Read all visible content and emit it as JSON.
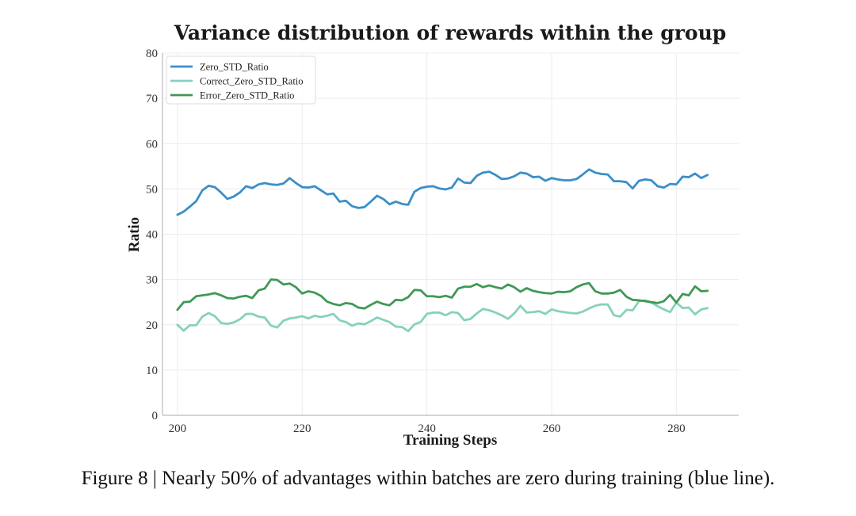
{
  "caption": "Figure 8 | Nearly 50% of advantages within batches are zero during training (blue line).",
  "chart_data": {
    "type": "line",
    "title": "Variance distribution of rewards within the group",
    "xlabel": "Training Steps",
    "ylabel": "Ratio",
    "xlim": [
      197.6,
      290
    ],
    "ylim": [
      0,
      80
    ],
    "xticks": [
      200,
      220,
      240,
      260,
      280
    ],
    "yticks": [
      0,
      10,
      20,
      30,
      40,
      50,
      60,
      70,
      80
    ],
    "grid": true,
    "legend_position": "top-left",
    "x": [
      200,
      201,
      202,
      203,
      204,
      205,
      206,
      207,
      208,
      209,
      210,
      211,
      212,
      213,
      214,
      215,
      216,
      217,
      218,
      219,
      220,
      221,
      222,
      223,
      224,
      225,
      226,
      227,
      228,
      229,
      230,
      231,
      232,
      233,
      234,
      235,
      236,
      237,
      238,
      239,
      240,
      241,
      242,
      243,
      244,
      245,
      246,
      247,
      248,
      249,
      250,
      251,
      252,
      253,
      254,
      255,
      256,
      257,
      258,
      259,
      260,
      261,
      262,
      263,
      264,
      265,
      266,
      267,
      268,
      269,
      270,
      271,
      272,
      273,
      274,
      275,
      276,
      277,
      278,
      279,
      280,
      281,
      282,
      283,
      284,
      285
    ],
    "series": [
      {
        "name": "Zero_STD_Ratio",
        "color": "#3a8fc9",
        "values": [
          44.3,
          45.0,
          46.1,
          47.3,
          49.7,
          50.7,
          50.4,
          49.2,
          47.8,
          48.3,
          49.2,
          50.6,
          50.2,
          51.0,
          51.3,
          51.0,
          50.9,
          51.2,
          52.4,
          51.3,
          50.4,
          50.3,
          50.6,
          49.7,
          48.8,
          49.0,
          47.2,
          47.4,
          46.2,
          45.8,
          46.0,
          47.2,
          48.5,
          47.8,
          46.6,
          47.2,
          46.7,
          46.5,
          49.4,
          50.2,
          50.5,
          50.6,
          50.1,
          49.9,
          50.3,
          52.3,
          51.4,
          51.3,
          52.9,
          53.6,
          53.8,
          53.1,
          52.2,
          52.3,
          52.8,
          53.6,
          53.4,
          52.6,
          52.7,
          51.8,
          52.4,
          52.1,
          51.9,
          51.9,
          52.2,
          53.2,
          54.3,
          53.6,
          53.3,
          53.2,
          51.7,
          51.7,
          51.5,
          50.1,
          51.8,
          52.1,
          51.9,
          50.6,
          50.3,
          51.1,
          51.0,
          52.7,
          52.6,
          53.4,
          52.4,
          53.1
        ]
      },
      {
        "name": "Correct_Zero_STD_Ratio",
        "color": "#86d1bc",
        "values": [
          20.0,
          18.7,
          19.9,
          19.9,
          21.8,
          22.6,
          21.9,
          20.4,
          20.2,
          20.5,
          21.2,
          22.4,
          22.4,
          21.8,
          21.6,
          19.8,
          19.4,
          20.9,
          21.4,
          21.6,
          21.9,
          21.4,
          22.0,
          21.7,
          22.0,
          22.4,
          21.0,
          20.6,
          19.8,
          20.3,
          20.1,
          20.8,
          21.6,
          21.1,
          20.6,
          19.6,
          19.5,
          18.6,
          20.1,
          20.6,
          22.4,
          22.7,
          22.7,
          22.1,
          22.8,
          22.6,
          21.0,
          21.3,
          22.5,
          23.5,
          23.2,
          22.7,
          22.1,
          21.3,
          22.5,
          24.2,
          22.7,
          22.8,
          23.0,
          22.4,
          23.4,
          23.0,
          22.8,
          22.6,
          22.5,
          22.9,
          23.6,
          24.2,
          24.5,
          24.5,
          22.1,
          21.8,
          23.3,
          23.2,
          25.2,
          25.4,
          24.9,
          24.1,
          23.4,
          22.8,
          24.9,
          23.7,
          23.8,
          22.3,
          23.4,
          23.7
        ]
      },
      {
        "name": "Error_Zero_STD_Ratio",
        "color": "#3f9955",
        "values": [
          23.3,
          25.0,
          25.1,
          26.3,
          26.5,
          26.7,
          27.0,
          26.5,
          25.9,
          25.8,
          26.2,
          26.4,
          25.9,
          27.6,
          28.0,
          30.0,
          29.9,
          28.9,
          29.1,
          28.3,
          26.9,
          27.4,
          27.1,
          26.4,
          25.1,
          24.6,
          24.3,
          24.8,
          24.6,
          23.8,
          23.6,
          24.4,
          25.1,
          24.6,
          24.3,
          25.5,
          25.4,
          26.1,
          27.7,
          27.6,
          26.3,
          26.3,
          26.1,
          26.4,
          26.0,
          28.0,
          28.4,
          28.4,
          29.0,
          28.3,
          28.7,
          28.3,
          28.0,
          28.9,
          28.3,
          27.3,
          28.1,
          27.5,
          27.2,
          27.0,
          26.9,
          27.3,
          27.2,
          27.4,
          28.3,
          28.9,
          29.2,
          27.4,
          26.9,
          26.9,
          27.1,
          27.7,
          26.2,
          25.5,
          25.4,
          25.2,
          25.0,
          24.8,
          25.2,
          26.6,
          24.9,
          26.8,
          26.5,
          28.5,
          27.4,
          27.5
        ]
      }
    ]
  }
}
